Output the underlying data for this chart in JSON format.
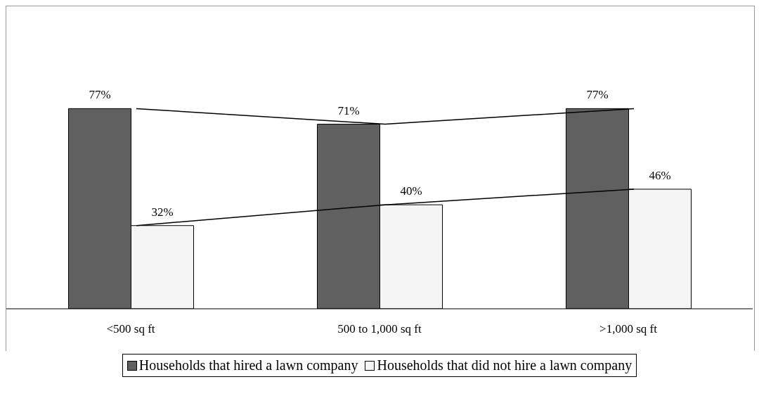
{
  "chart_data": {
    "type": "bar",
    "categories": [
      "<500 sq ft",
      "500 to 1,000 sq ft",
      ">1,000 sq ft"
    ],
    "series": [
      {
        "name": "Households that hired a lawn company",
        "color": "#606060",
        "values": [
          77,
          71,
          77
        ],
        "value_labels": [
          "77%",
          "71%",
          "77%"
        ]
      },
      {
        "name": "Households that did not hire a lawn company",
        "color": "#f5f5f5",
        "values": [
          32,
          40,
          46
        ],
        "value_labels": [
          "32%",
          "40%",
          "46%"
        ]
      },
      {
        "type": "line",
        "color": "#000000",
        "values": [
          77,
          71,
          77
        ]
      },
      {
        "type": "line",
        "color": "#000000",
        "values": [
          32,
          40,
          46
        ]
      }
    ],
    "legend": "bottom",
    "grid": false
  }
}
